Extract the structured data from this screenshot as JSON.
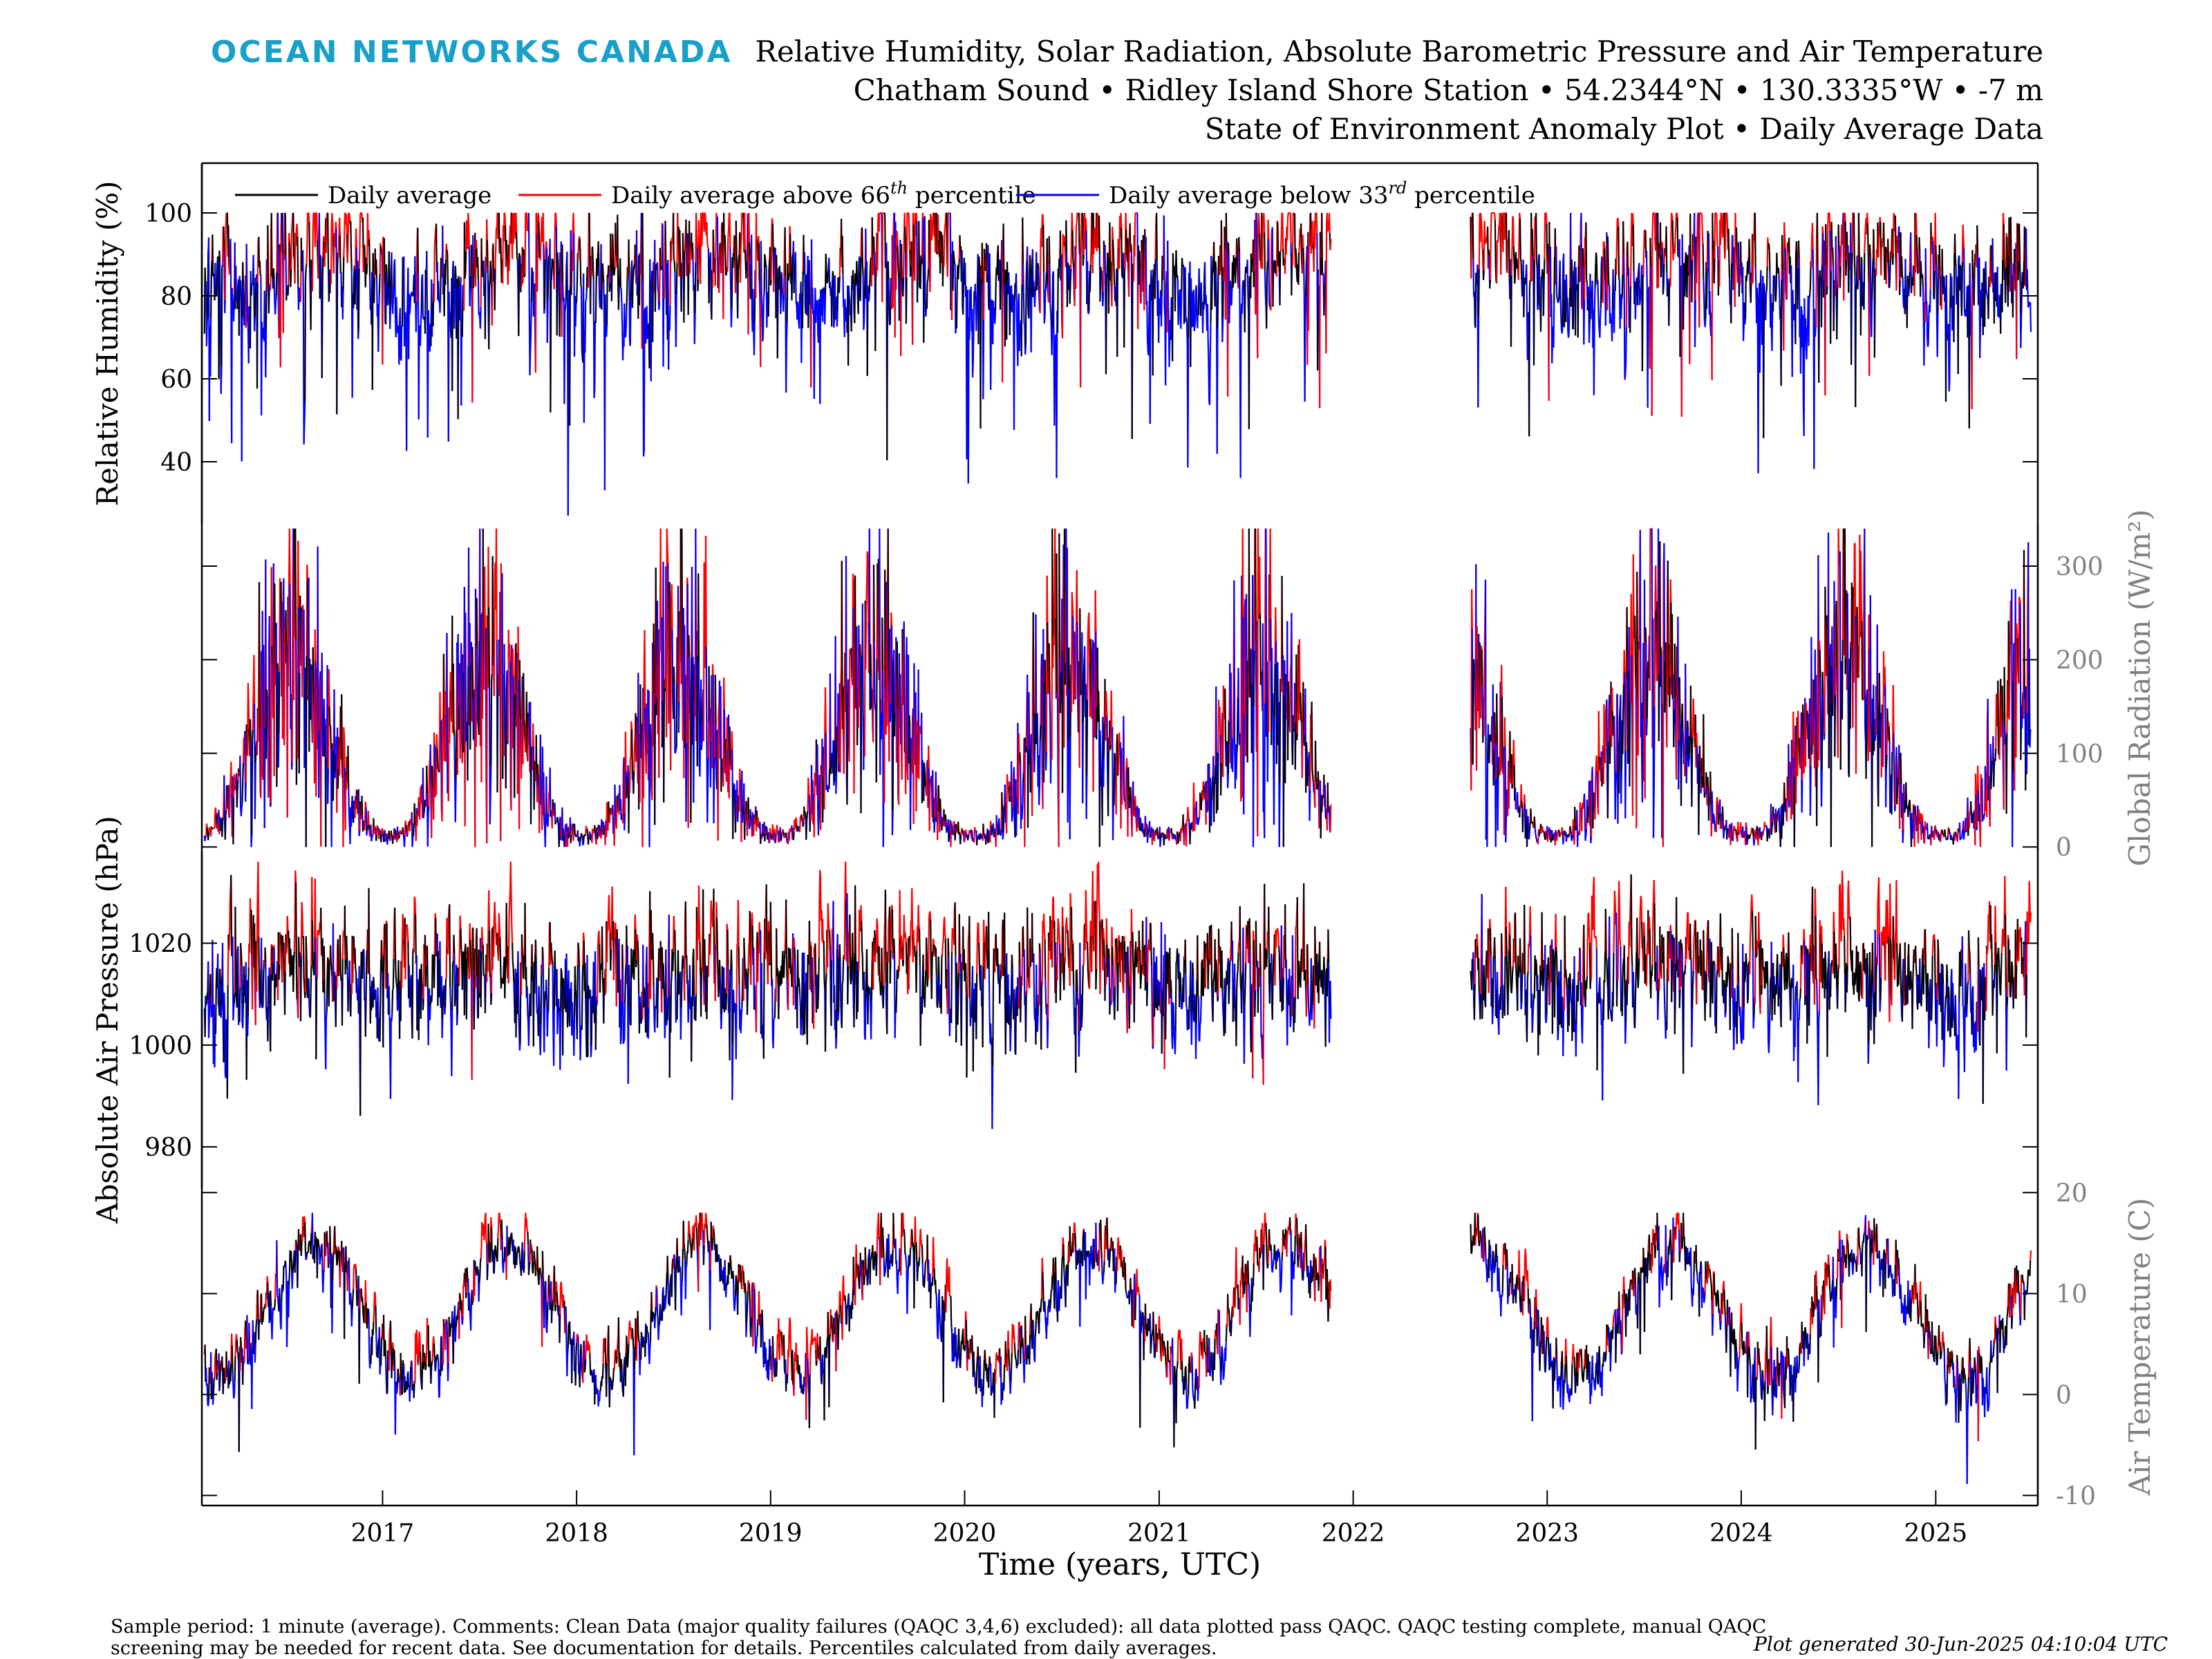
{
  "brand": "OCEAN NETWORKS CANADA",
  "title_lines": [
    "Relative Humidity, Solar Radiation, Absolute Barometric Pressure and Air Temperature",
    "Chatham Sound • Ridley Island Shore Station • 54.2344°N • 130.3335°W • -7 m",
    "State of Environment Anomaly Plot • Daily Average Data"
  ],
  "footnote": "Sample period: 1 minute (average). Comments: Clean Data (major quality failures (QAQC 3,4,6) excluded): all data plotted pass QAQC. QAQC testing complete, manual QAQC screening may be needed for recent data. See documentation for details. Percentiles calculated from daily averages.",
  "generated": "Plot generated 30-Jun-2025 04:10:04 UTC",
  "colors": {
    "daily": "#000000",
    "above": "#ff0000",
    "below": "#0000ff",
    "brand": "#1aa0c8",
    "right_axis": "#808080"
  },
  "chart_data": {
    "type": "line",
    "xlabel": "Time (years, UTC)",
    "x_ticks": [
      "2017",
      "2018",
      "2019",
      "2020",
      "2021",
      "2022",
      "2023",
      "2024",
      "2025"
    ],
    "xlim": [
      "2016-01-27",
      "2025-07-12"
    ],
    "data_range": [
      "2016-02-01",
      "2025-06-29"
    ],
    "data_gap": [
      "2021-11-20",
      "2022-08-10"
    ],
    "legend": {
      "placement": "top-left",
      "daily": "Daily average",
      "above_prefix": "Daily average above 66",
      "above_sup": "th",
      "below_prefix": "Daily average below 33",
      "below_sup": "rd",
      "suffix": " percentile"
    },
    "panels": [
      {
        "name": "humidity",
        "ylabel": "Relative Humidity (%)",
        "axis_side": "left",
        "ylim": [
          25,
          112
        ],
        "yticks": [
          40,
          60,
          80,
          100
        ],
        "seasonal": {
          "mean": 86,
          "amplitude": 5,
          "peak_month": 8.5,
          "noise": 7,
          "dip_rate": 0.07,
          "dip_depth": 38,
          "clip": [
            27,
            100
          ]
        },
        "thresholds": {
          "above": 91,
          "below": 82
        },
        "approx_range": [
          27,
          100
        ]
      },
      {
        "name": "radiation",
        "ylabel": "Global Radiation (W/m²)",
        "axis_side": "right",
        "ylim": [
          -5,
          345
        ],
        "yticks": [
          0,
          100,
          200,
          300
        ],
        "seasonal": {
          "kind": "solar",
          "base": 12,
          "amplitude": 185,
          "peak_month": 6.5,
          "noise_frac": 0.45,
          "clip": [
            0,
            340
          ]
        },
        "thresholds": {
          "above_frac": 1.15,
          "below_frac": 0.85
        },
        "approx_range": [
          0,
          340
        ]
      },
      {
        "name": "pressure",
        "ylabel": "Absolute Air Pressure (hPa)",
        "axis_side": "left",
        "ylim": [
          972,
          1038
        ],
        "yticks": [
          980,
          1000,
          1020
        ],
        "seasonal": {
          "mean": 1014,
          "amplitude": 2,
          "peak_month": 7,
          "noise": 6,
          "dip_rate": 0.05,
          "dip_depth": 18,
          "clip": [
            976,
            1036
          ]
        },
        "thresholds": {
          "above": 1019,
          "below": 1009
        },
        "approx_range": [
          976,
          1036
        ]
      },
      {
        "name": "temperature",
        "ylabel": "Air Temperature (C)",
        "axis_side": "right",
        "ylim": [
          -11,
          20.5
        ],
        "yticks": [
          -10,
          0,
          10,
          20
        ],
        "seasonal": {
          "mean": 8.5,
          "amplitude": 6.5,
          "peak_month": 7.8,
          "noise": 1.6,
          "dip_rate": 0.03,
          "dip_depth": 9,
          "clip": [
            -10,
            18
          ]
        },
        "thresholds": {
          "above": 1.2,
          "below": -1.2,
          "relative": true
        },
        "approx_range": [
          -10,
          18
        ]
      }
    ]
  }
}
